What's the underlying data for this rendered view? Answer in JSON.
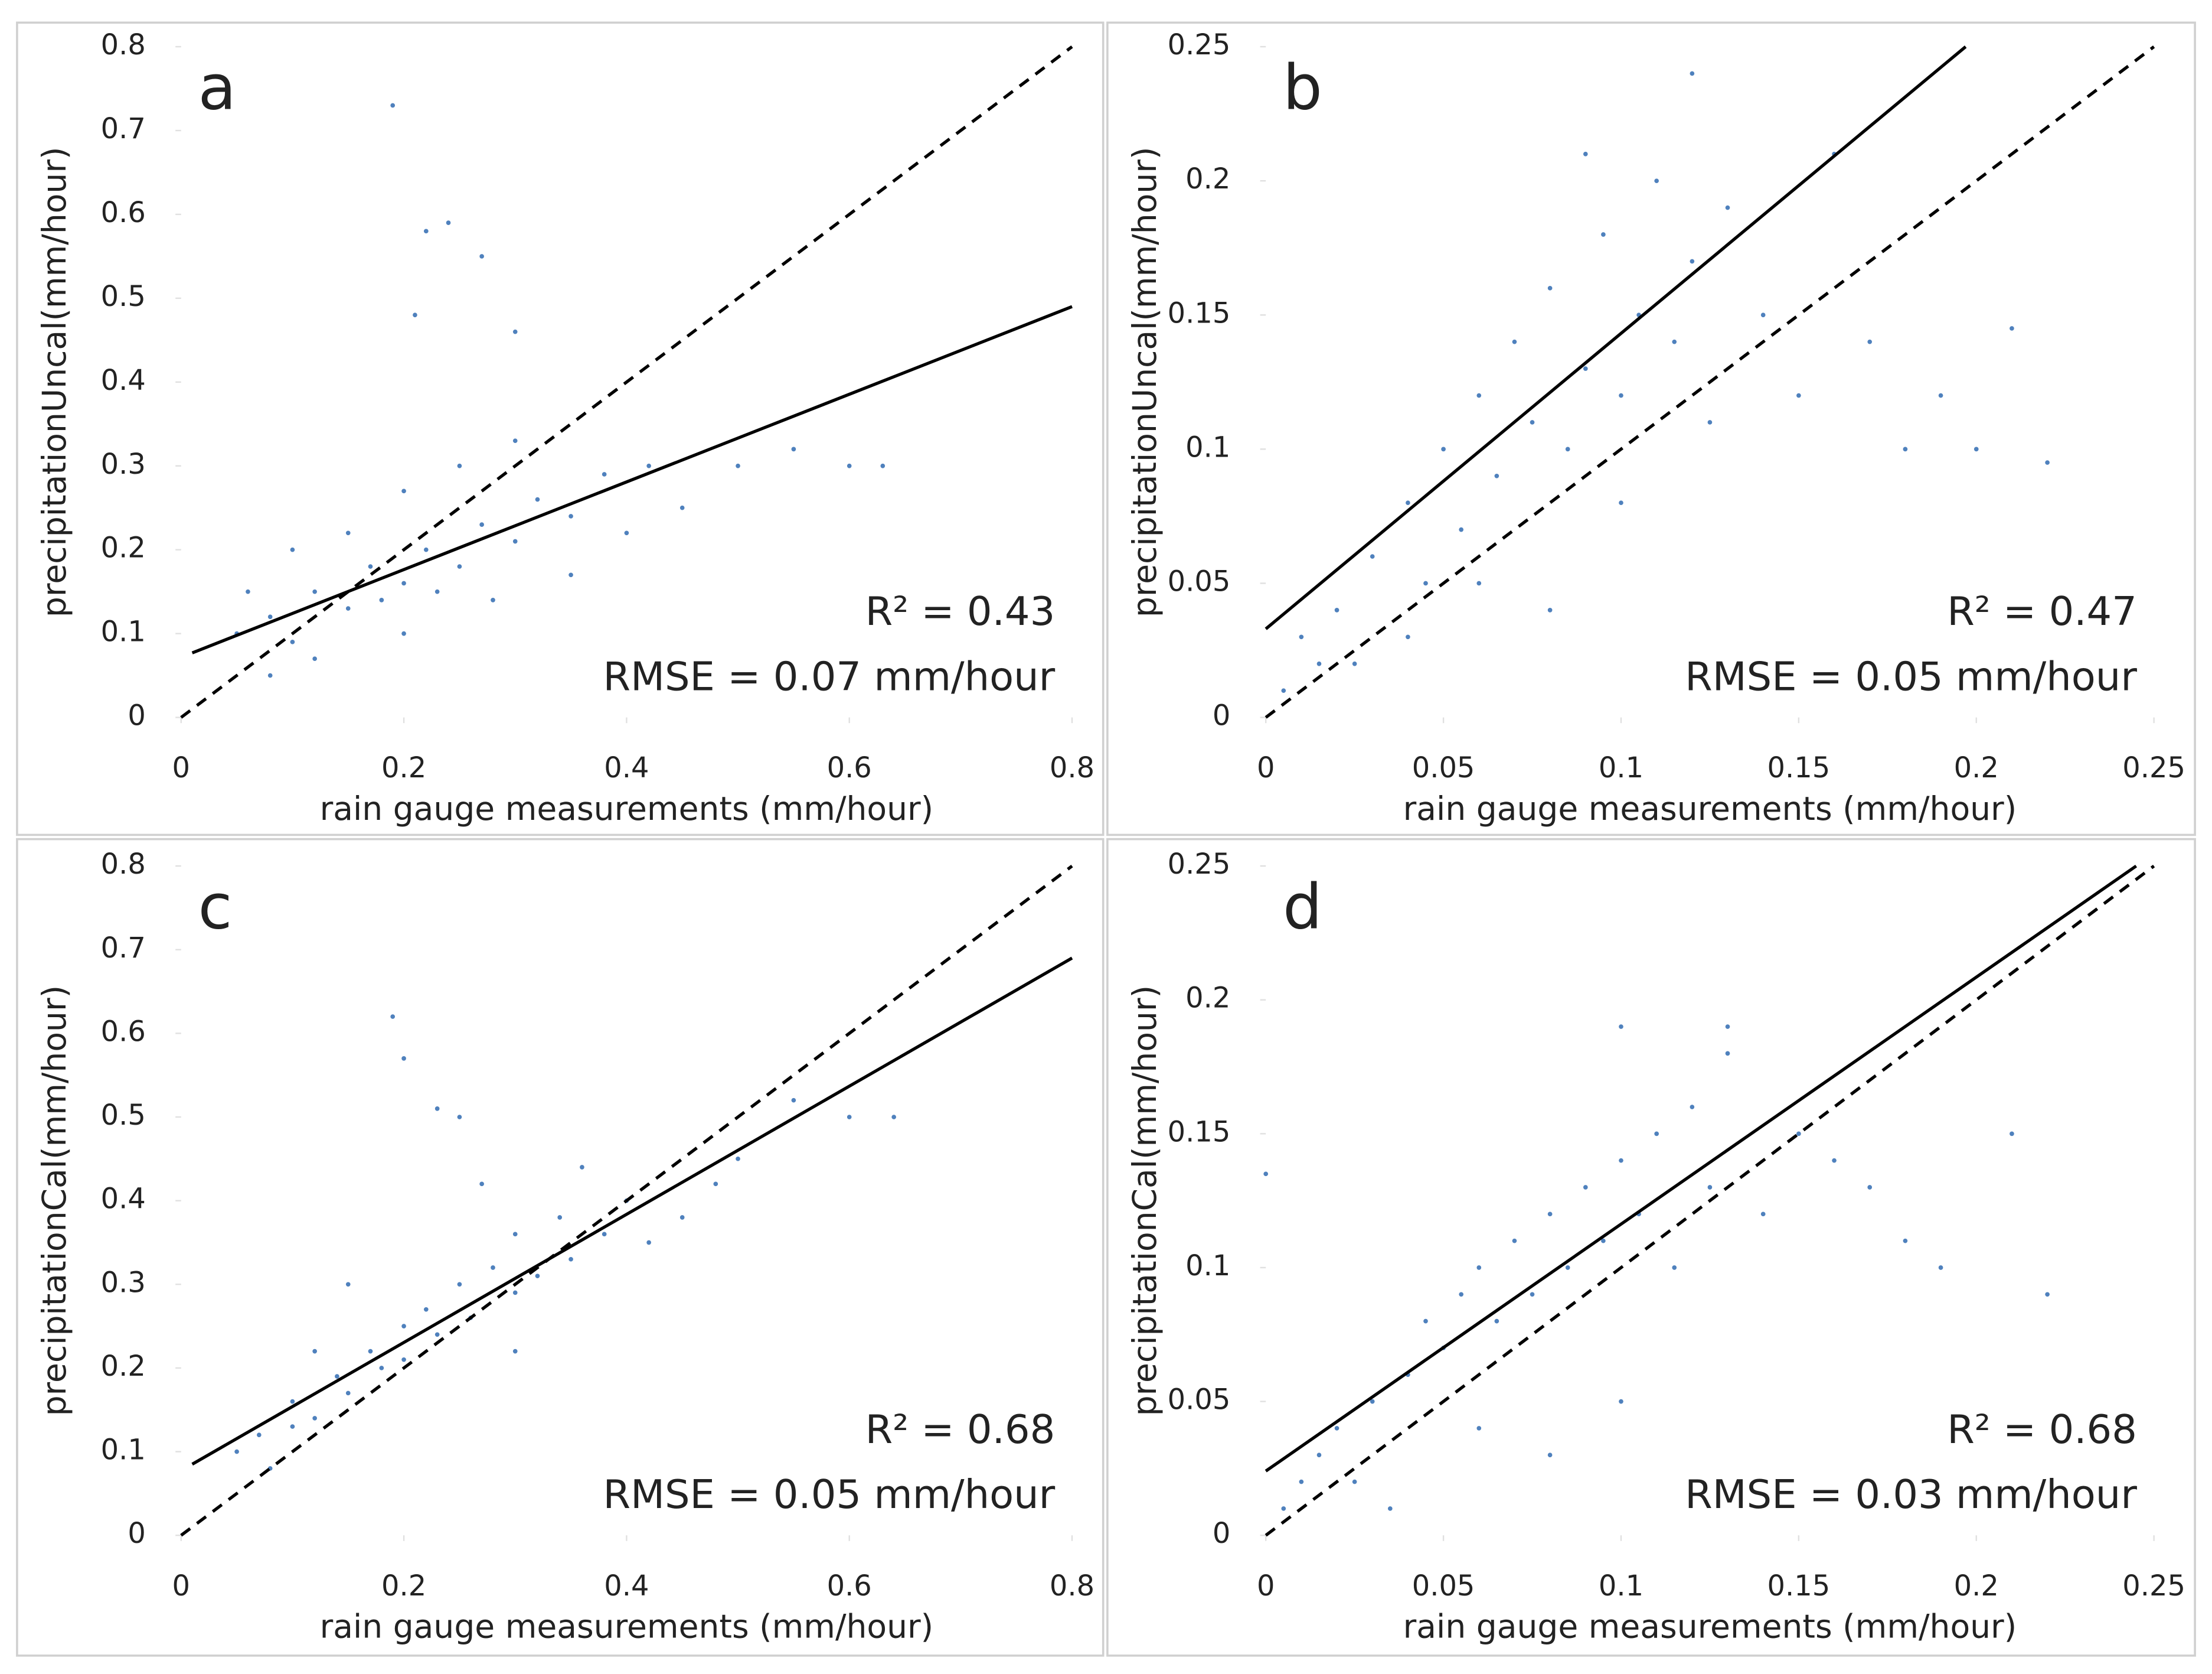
{
  "chart_data": [
    {
      "type": "scatter",
      "panel_label": "a",
      "xlabel": "rain gauge measurements (mm/hour)",
      "ylabel": "precipitationUncal(mm/hour)",
      "xlim": [
        0,
        0.8
      ],
      "ylim": [
        0,
        0.8
      ],
      "xticks": [
        0,
        0.2,
        0.4,
        0.6,
        0.8
      ],
      "yticks": [
        0,
        0.1,
        0.2,
        0.3,
        0.4,
        0.5,
        0.6,
        0.7,
        0.8
      ],
      "annotations": [
        "R² = 0.43",
        "RMSE = 0.07 mm/hour"
      ],
      "series": [
        {
          "type": "scatter",
          "color": "#4f81bd",
          "x": [
            0.05,
            0.08,
            0.1,
            0.12,
            0.15,
            0.17,
            0.2,
            0.22,
            0.25,
            0.27,
            0.3,
            0.32,
            0.35,
            0.38,
            0.4,
            0.42,
            0.45,
            0.1,
            0.15,
            0.2,
            0.25,
            0.3,
            0.12,
            0.2,
            0.28,
            0.35,
            0.5,
            0.55,
            0.6,
            0.63,
            0.19,
            0.22,
            0.24,
            0.27,
            0.21,
            0.3,
            0.08,
            0.06,
            0.18,
            0.23
          ],
          "y": [
            0.1,
            0.12,
            0.09,
            0.15,
            0.13,
            0.18,
            0.16,
            0.2,
            0.18,
            0.23,
            0.21,
            0.26,
            0.24,
            0.29,
            0.22,
            0.3,
            0.25,
            0.2,
            0.22,
            0.27,
            0.3,
            0.33,
            0.07,
            0.1,
            0.14,
            0.17,
            0.3,
            0.32,
            0.3,
            0.3,
            0.73,
            0.58,
            0.59,
            0.55,
            0.48,
            0.46,
            0.05,
            0.15,
            0.14,
            0.15
          ]
        },
        {
          "type": "line",
          "color": "#000000",
          "dashed": false,
          "x": [
            0.01,
            0.8
          ],
          "y": [
            0.077,
            0.49
          ]
        },
        {
          "type": "line",
          "color": "#000000",
          "dashed": true,
          "x": [
            0,
            0.8
          ],
          "y": [
            0,
            0.8
          ]
        }
      ]
    },
    {
      "type": "scatter",
      "panel_label": "b",
      "xlabel": "rain gauge measurements (mm/hour)",
      "ylabel": "precipitationUncal(mm/hour)",
      "xlim": [
        0,
        0.25
      ],
      "ylim": [
        0,
        0.25
      ],
      "xticks": [
        0,
        0.05,
        0.1,
        0.15,
        0.2,
        0.25
      ],
      "yticks": [
        0,
        0.05,
        0.1,
        0.15,
        0.2,
        0.25
      ],
      "annotations": [
        "R² = 0.47",
        "RMSE = 0.05 mm/hour"
      ],
      "series": [
        {
          "type": "scatter",
          "color": "#4f81bd",
          "x": [
            0.005,
            0.01,
            0.015,
            0.02,
            0.025,
            0.03,
            0.04,
            0.045,
            0.05,
            0.055,
            0.06,
            0.065,
            0.07,
            0.075,
            0.08,
            0.085,
            0.09,
            0.095,
            0.1,
            0.105,
            0.11,
            0.115,
            0.12,
            0.125,
            0.13,
            0.14,
            0.15,
            0.16,
            0.17,
            0.18,
            0.19,
            0.2,
            0.21,
            0.22,
            0.06,
            0.08,
            0.1,
            0.04,
            0.12,
            0.09
          ],
          "y": [
            0.01,
            0.03,
            0.02,
            0.04,
            0.02,
            0.06,
            0.08,
            0.05,
            0.1,
            0.07,
            0.12,
            0.09,
            0.14,
            0.11,
            0.16,
            0.1,
            0.13,
            0.18,
            0.12,
            0.15,
            0.2,
            0.14,
            0.17,
            0.11,
            0.19,
            0.15,
            0.12,
            0.21,
            0.14,
            0.1,
            0.12,
            0.1,
            0.145,
            0.095,
            0.05,
            0.04,
            0.08,
            0.03,
            0.24,
            0.21
          ]
        },
        {
          "type": "line",
          "color": "#000000",
          "dashed": false,
          "x": [
            0,
            0.197
          ],
          "y": [
            0.033,
            0.25
          ]
        },
        {
          "type": "line",
          "color": "#000000",
          "dashed": true,
          "x": [
            0,
            0.25
          ],
          "y": [
            0,
            0.25
          ]
        }
      ]
    },
    {
      "type": "scatter",
      "panel_label": "c",
      "xlabel": "rain gauge measurements (mm/hour)",
      "ylabel": "precipitationCal(mm/hour)",
      "xlim": [
        0,
        0.8
      ],
      "ylim": [
        0,
        0.8
      ],
      "xticks": [
        0,
        0.2,
        0.4,
        0.6,
        0.8
      ],
      "yticks": [
        0,
        0.1,
        0.2,
        0.3,
        0.4,
        0.5,
        0.6,
        0.7,
        0.8
      ],
      "annotations": [
        "R² = 0.68",
        "RMSE = 0.05 mm/hour"
      ],
      "series": [
        {
          "type": "scatter",
          "color": "#4f81bd",
          "x": [
            0.05,
            0.07,
            0.1,
            0.1,
            0.12,
            0.14,
            0.15,
            0.17,
            0.18,
            0.2,
            0.2,
            0.22,
            0.23,
            0.25,
            0.26,
            0.28,
            0.3,
            0.3,
            0.32,
            0.34,
            0.35,
            0.38,
            0.4,
            0.42,
            0.45,
            0.48,
            0.5,
            0.55,
            0.6,
            0.64,
            0.19,
            0.2,
            0.23,
            0.25,
            0.15,
            0.12,
            0.3,
            0.08,
            0.36,
            0.27
          ],
          "y": [
            0.1,
            0.12,
            0.13,
            0.16,
            0.14,
            0.19,
            0.17,
            0.22,
            0.2,
            0.25,
            0.21,
            0.27,
            0.24,
            0.3,
            0.26,
            0.32,
            0.29,
            0.36,
            0.31,
            0.38,
            0.33,
            0.36,
            0.4,
            0.35,
            0.38,
            0.42,
            0.45,
            0.52,
            0.5,
            0.5,
            0.62,
            0.57,
            0.51,
            0.5,
            0.3,
            0.22,
            0.22,
            0.08,
            0.44,
            0.42
          ]
        },
        {
          "type": "line",
          "color": "#000000",
          "dashed": false,
          "x": [
            0.01,
            0.8
          ],
          "y": [
            0.085,
            0.69
          ]
        },
        {
          "type": "line",
          "color": "#000000",
          "dashed": true,
          "x": [
            0,
            0.8
          ],
          "y": [
            0,
            0.8
          ]
        }
      ]
    },
    {
      "type": "scatter",
      "panel_label": "d",
      "xlabel": "rain gauge measurements (mm/hour)",
      "ylabel": "precipitationCal(mm/hour)",
      "xlim": [
        0,
        0.25
      ],
      "ylim": [
        0,
        0.25
      ],
      "xticks": [
        0,
        0.05,
        0.1,
        0.15,
        0.2,
        0.25
      ],
      "yticks": [
        0,
        0.05,
        0.1,
        0.15,
        0.2,
        0.25
      ],
      "annotations": [
        "R² = 0.68",
        "RMSE = 0.03 mm/hour"
      ],
      "series": [
        {
          "type": "scatter",
          "color": "#4f81bd",
          "x": [
            0.005,
            0.01,
            0.015,
            0.02,
            0.025,
            0.03,
            0.035,
            0.04,
            0.045,
            0.05,
            0.055,
            0.06,
            0.065,
            0.07,
            0.075,
            0.08,
            0.085,
            0.09,
            0.095,
            0.1,
            0.105,
            0.11,
            0.115,
            0.12,
            0.125,
            0.13,
            0.14,
            0.15,
            0.16,
            0.17,
            0.18,
            0.19,
            0.21,
            0.22,
            0.1,
            0.13,
            0.06,
            0.08,
            0.1,
            0
          ],
          "y": [
            0.01,
            0.02,
            0.03,
            0.04,
            0.02,
            0.05,
            0.01,
            0.06,
            0.08,
            0.07,
            0.09,
            0.1,
            0.08,
            0.11,
            0.09,
            0.12,
            0.1,
            0.13,
            0.11,
            0.14,
            0.12,
            0.15,
            0.1,
            0.16,
            0.13,
            0.18,
            0.12,
            0.15,
            0.14,
            0.13,
            0.11,
            0.1,
            0.15,
            0.09,
            0.19,
            0.19,
            0.04,
            0.03,
            0.05,
            0.135
          ]
        },
        {
          "type": "line",
          "color": "#000000",
          "dashed": false,
          "x": [
            0,
            0.245
          ],
          "y": [
            0.024,
            0.25
          ]
        },
        {
          "type": "line",
          "color": "#000000",
          "dashed": true,
          "x": [
            0,
            0.25
          ],
          "y": [
            0,
            0.25
          ]
        }
      ]
    }
  ]
}
